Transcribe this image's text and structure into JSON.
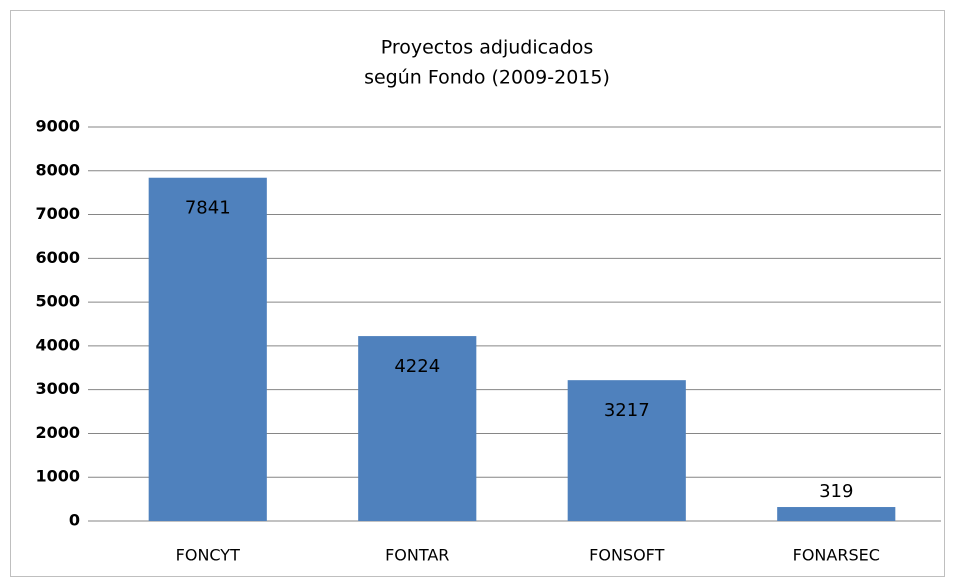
{
  "chart_data": {
    "type": "bar",
    "title": [
      "Proyectos adjudicados",
      "según Fondo (2009-2015)"
    ],
    "categories": [
      "FONCYT",
      "FONTAR",
      "FONSOFT",
      "FONARSEC"
    ],
    "values": [
      7841,
      4224,
      3217,
      319
    ],
    "color": "#4f81bd",
    "ylim": [
      0,
      9000
    ],
    "yticks": [
      0,
      1000,
      2000,
      3000,
      4000,
      5000,
      6000,
      7000,
      8000,
      9000
    ],
    "grid": true
  }
}
